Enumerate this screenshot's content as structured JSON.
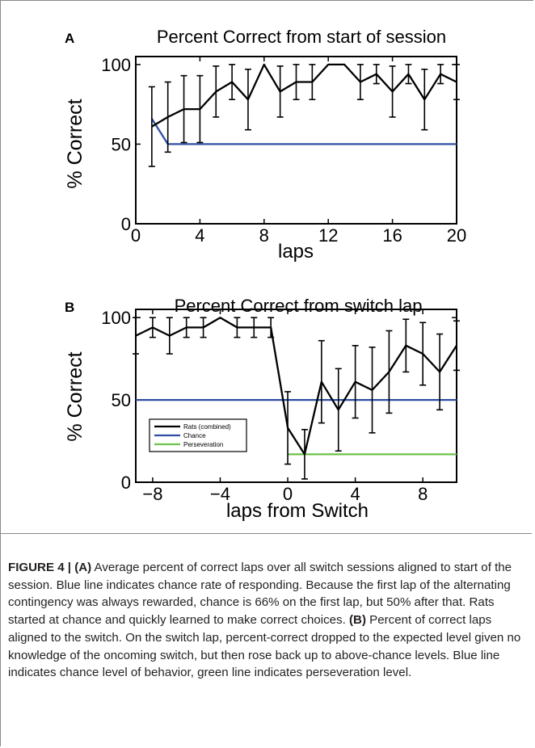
{
  "figure": {
    "panels": [
      {
        "letter": "A"
      },
      {
        "letter": "B"
      }
    ]
  },
  "chart_data": [
    {
      "type": "line",
      "title": "Percent Correct from start of session",
      "xlabel": "laps",
      "ylabel": "% Correct",
      "xlim": [
        0,
        20
      ],
      "ylim": [
        0,
        105
      ],
      "xticks": [
        0,
        4,
        8,
        12,
        16,
        20
      ],
      "yticks": [
        0,
        50,
        100
      ],
      "grid": false,
      "series": [
        {
          "color": "#000000",
          "x": [
            1,
            2,
            3,
            4,
            5,
            6,
            7,
            8,
            9,
            10,
            11,
            12,
            13,
            14,
            15,
            16,
            17,
            18,
            19,
            20
          ],
          "y": [
            61,
            67,
            72,
            72,
            83,
            89,
            78,
            100,
            83,
            89,
            89,
            100,
            100,
            89,
            94,
            83,
            94,
            78,
            94,
            89
          ],
          "err": [
            25,
            22,
            21,
            21,
            16,
            11,
            19,
            0,
            16,
            11,
            11,
            0,
            0,
            11,
            6,
            16,
            6,
            19,
            6,
            11
          ]
        },
        {
          "color": "#2e4ea1",
          "x": [
            1,
            2,
            20
          ],
          "y": [
            66,
            50,
            50
          ]
        }
      ]
    },
    {
      "type": "line",
      "title": "Percent Correct from switch lap",
      "xlabel": "laps from Switch",
      "ylabel": "% Correct",
      "xlim": [
        -9,
        10
      ],
      "ylim": [
        0,
        105
      ],
      "xticks": [
        -8,
        -4,
        0,
        4,
        8
      ],
      "yticks": [
        0,
        50,
        100
      ],
      "grid": false,
      "legend_position": "bottom-left",
      "series": [
        {
          "name": "Rats (combined)",
          "color": "#000000",
          "x": [
            -9,
            -8,
            -7,
            -6,
            -5,
            -4,
            -3,
            -2,
            -1,
            0,
            1,
            2,
            3,
            4,
            5,
            6,
            7,
            8,
            9,
            10
          ],
          "y": [
            89,
            94,
            89,
            94,
            94,
            100,
            94,
            94,
            94,
            33,
            17,
            61,
            44,
            61,
            56,
            67,
            83,
            78,
            67,
            83
          ],
          "err": [
            11,
            6,
            11,
            6,
            6,
            0,
            6,
            6,
            6,
            22,
            15,
            25,
            25,
            22,
            26,
            25,
            16,
            19,
            23,
            15
          ]
        },
        {
          "name": "Chance",
          "color": "#2e4ea1",
          "x": [
            -9,
            10
          ],
          "y": [
            50,
            50
          ]
        },
        {
          "name": "Perseveration",
          "color": "#6cc24a",
          "x": [
            0,
            10
          ],
          "y": [
            17,
            17
          ]
        }
      ]
    }
  ],
  "caption": {
    "lead": "FIGURE 4 | ",
    "a_tag": "(A)",
    "a_text": " Average percent of correct laps over all switch sessions aligned to start of the session. Blue line indicates chance rate of responding. Because the first lap of the alternating contingency was always rewarded, chance is 66% on the first lap, but 50% after that. Rats started at chance and quickly learned to make correct choices. ",
    "b_tag": "(B)",
    "b_text": " Percent of correct laps aligned to the switch. On the switch lap, percent-correct dropped to the expected level given no knowledge of the oncoming switch, but then rose back up to above-chance levels. Blue line indicates chance level of behavior, green line indicates perseveration level."
  }
}
